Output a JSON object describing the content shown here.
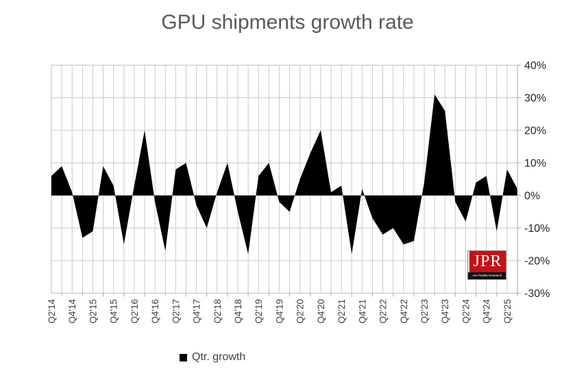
{
  "title": "GPU shipments growth rate",
  "legend": {
    "label": "Qtr. growth",
    "swatch_color": "#000000"
  },
  "logo": {
    "text": "JPR",
    "subtext": "Jon Peddie Research",
    "bg_color": "#c41219",
    "strip_color": "#111111"
  },
  "colors": {
    "area_fill": "#000000",
    "gridline": "#c9c9c9",
    "plot_border": "#bfbfbf",
    "axis_tick": "#a6a6a6",
    "title_text": "#595959",
    "y_label_text": "#262626",
    "x_label_text": "#404040"
  },
  "chart_data": {
    "type": "area",
    "title": "GPU shipments growth rate",
    "series": [
      {
        "name": "Qtr. growth",
        "values": [
          6,
          9,
          1,
          -13,
          -11,
          9,
          3,
          -15,
          3,
          20,
          -2,
          -17,
          8,
          10,
          -3,
          -10,
          1,
          10,
          -5,
          -18,
          6,
          10,
          -2,
          -5,
          5,
          13,
          20,
          1,
          3,
          -18,
          2,
          -7,
          -12,
          -10,
          -15,
          -14,
          4,
          31,
          26,
          -2,
          -8,
          4,
          6,
          -11,
          8,
          2
        ]
      }
    ],
    "categories": [
      "Q2'14",
      "Q3'14",
      "Q4'14",
      "Q1'15",
      "Q2'15",
      "Q3'15",
      "Q4'15",
      "Q1'16",
      "Q2'16",
      "Q3'16",
      "Q4'16",
      "Q1'17",
      "Q2'17",
      "Q3'17",
      "Q4'17",
      "Q1'18",
      "Q2'18",
      "Q3'18",
      "Q4'18",
      "Q1'19",
      "Q2'19",
      "Q3'19",
      "Q4'19",
      "Q1'20",
      "Q2'20",
      "Q3'20",
      "Q4'20",
      "Q1'21",
      "Q2'21",
      "Q3'21",
      "Q4'21",
      "Q1'22",
      "Q2'22",
      "Q3'22",
      "Q4'22",
      "Q1'23",
      "Q2'23",
      "Q3'23",
      "Q4'23",
      "Q1'24",
      "Q2'24",
      "Q3'24",
      "Q4'24",
      "Q1'25",
      "Q2'25",
      "Q3'25"
    ],
    "x_label_every": 2,
    "x_tick_labels_shown": [
      "Q2'14",
      "Q4'14",
      "Q2'15",
      "Q4'15",
      "Q2'16",
      "Q4'16",
      "Q2'17",
      "Q4'17",
      "Q2'18",
      "Q4'18",
      "Q2'19",
      "Q4'19",
      "Q2'20",
      "Q4'20",
      "Q2'21",
      "Q4'21",
      "Q2'22",
      "Q4'22",
      "Q2'23",
      "Q4'23",
      "Q2'24",
      "Q4'24",
      "Q2'25"
    ],
    "xlabel": "",
    "ylabel": "",
    "ylim": [
      -30,
      40
    ],
    "y_ticks": [
      40,
      30,
      20,
      10,
      0,
      -10,
      -20,
      -30
    ],
    "y_tick_labels": [
      "40%",
      "30%",
      "20%",
      "10%",
      "0%",
      "-10%",
      "-20%",
      "-30%"
    ],
    "y_axis_side": "right",
    "grid": true,
    "legend_position": "bottom"
  }
}
